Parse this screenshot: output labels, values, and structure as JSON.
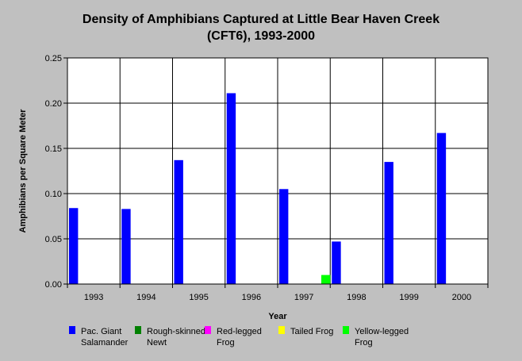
{
  "chart_data": {
    "type": "bar",
    "title": "Density of Amphibians Captured at Little Bear Haven Creek",
    "subtitle": "(CFT6), 1993-2000",
    "xlabel": "Year",
    "ylabel": "Amphibians per Square Meter",
    "ylim": [
      0,
      0.25
    ],
    "yticks": [
      "0.00",
      "0.05",
      "0.10",
      "0.15",
      "0.20",
      "0.25"
    ],
    "categories": [
      "1993",
      "1994",
      "1995",
      "1996",
      "1997",
      "1998",
      "1999",
      "2000"
    ],
    "grid": true,
    "legend_position": "bottom",
    "series": [
      {
        "name": "Pac. Giant Salamander",
        "legend_lines": [
          "Pac. Giant",
          "Salamander"
        ],
        "color": "#0000ff",
        "values": [
          0.084,
          0.083,
          0.137,
          0.211,
          0.105,
          0.047,
          0.135,
          0.167
        ]
      },
      {
        "name": "Rough-skinned Newt",
        "legend_lines": [
          "Rough-skinned",
          "Newt"
        ],
        "color": "#008000",
        "values": [
          0,
          0,
          0,
          0,
          0,
          0,
          0,
          0
        ]
      },
      {
        "name": "Red-legged Frog",
        "legend_lines": [
          "Red-legged",
          "Frog"
        ],
        "color": "#ff00ff",
        "values": [
          0,
          0,
          0,
          0,
          0,
          0,
          0,
          0
        ]
      },
      {
        "name": "Tailed Frog",
        "legend_lines": [
          "Tailed Frog"
        ],
        "color": "#ffff00",
        "values": [
          0,
          0,
          0,
          0,
          0,
          0,
          0,
          0
        ]
      },
      {
        "name": "Yellow-legged Frog",
        "legend_lines": [
          "Yellow-legged",
          "Frog"
        ],
        "color": "#00ff00",
        "values": [
          0,
          0,
          0,
          0,
          0.01,
          0,
          0,
          0
        ]
      }
    ]
  }
}
